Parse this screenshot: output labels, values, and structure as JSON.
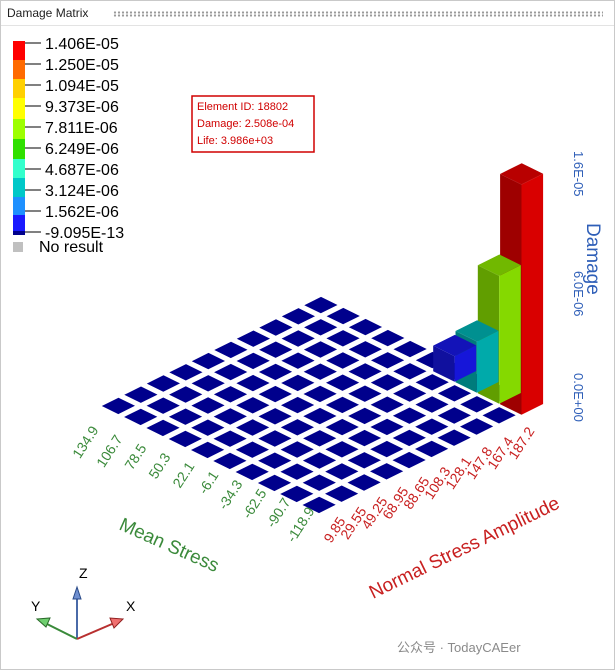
{
  "window": {
    "title": "Damage Matrix"
  },
  "legend": {
    "colors": [
      "#ff0000",
      "#ff6a00",
      "#ffd000",
      "#ffff00",
      "#9dff00",
      "#2fe000",
      "#33ffcc",
      "#00c8c8",
      "#1e90ff",
      "#1a1aff",
      "#00008c"
    ],
    "labels": [
      "1.406E-05",
      "1.250E-05",
      "1.094E-05",
      "9.373E-06",
      "7.811E-06",
      "6.249E-06",
      "4.687E-06",
      "3.124E-06",
      "1.562E-06",
      "-9.095E-13"
    ],
    "no_result_label": "No result",
    "no_result_color": "#c0c0c0"
  },
  "tooltip": {
    "line1": "Element ID: 18802",
    "line2": "Damage: 2.508e-04",
    "line3": "Life: 3.986e+03"
  },
  "axes": {
    "damage_title": "Damage",
    "damage_ticks": [
      "0.0E+00",
      "6.0E-06",
      "1.6E-05"
    ],
    "mean_stress_title": "Mean Stress",
    "mean_stress_ticks": [
      "134.9",
      "106.7",
      "78.5",
      "50.3",
      "22.1",
      "-6.1",
      "-34.3",
      "-62.5",
      "-90.7",
      "-118.9"
    ],
    "amplitude_title": "Normal Stress Amplitude",
    "amplitude_ticks": [
      "9.85",
      "29.55",
      "49.25",
      "68.95",
      "88.65",
      "108.3",
      "128.1",
      "147.8",
      "167.4",
      "187.2"
    ],
    "triad": {
      "z": "Z",
      "y": "Y",
      "x": "X"
    }
  },
  "chart_data": {
    "type": "bar3d",
    "rows_label": "Mean Stress",
    "cols_label": "Normal Stress Amplitude",
    "value_label": "Damage",
    "zlim": [
      0,
      1.6e-05
    ],
    "bars": [
      {
        "mean_stress": "-118.9",
        "amplitude": "187.2",
        "damage": 1.406e-05,
        "color": "#ff0000"
      },
      {
        "mean_stress": "-90.7",
        "amplitude": "187.2",
        "damage": 7.811e-06,
        "color": "#9dff00"
      },
      {
        "mean_stress": "-62.5",
        "amplitude": "187.2",
        "damage": 3.124e-06,
        "color": "#00c8c8"
      },
      {
        "mean_stress": "-34.3",
        "amplitude": "187.2",
        "damage": 1.562e-06,
        "color": "#1a1aff"
      }
    ],
    "base_cell_color": "#00008c"
  },
  "footer": {
    "watermark": "公众号 · TodayCAEer"
  }
}
